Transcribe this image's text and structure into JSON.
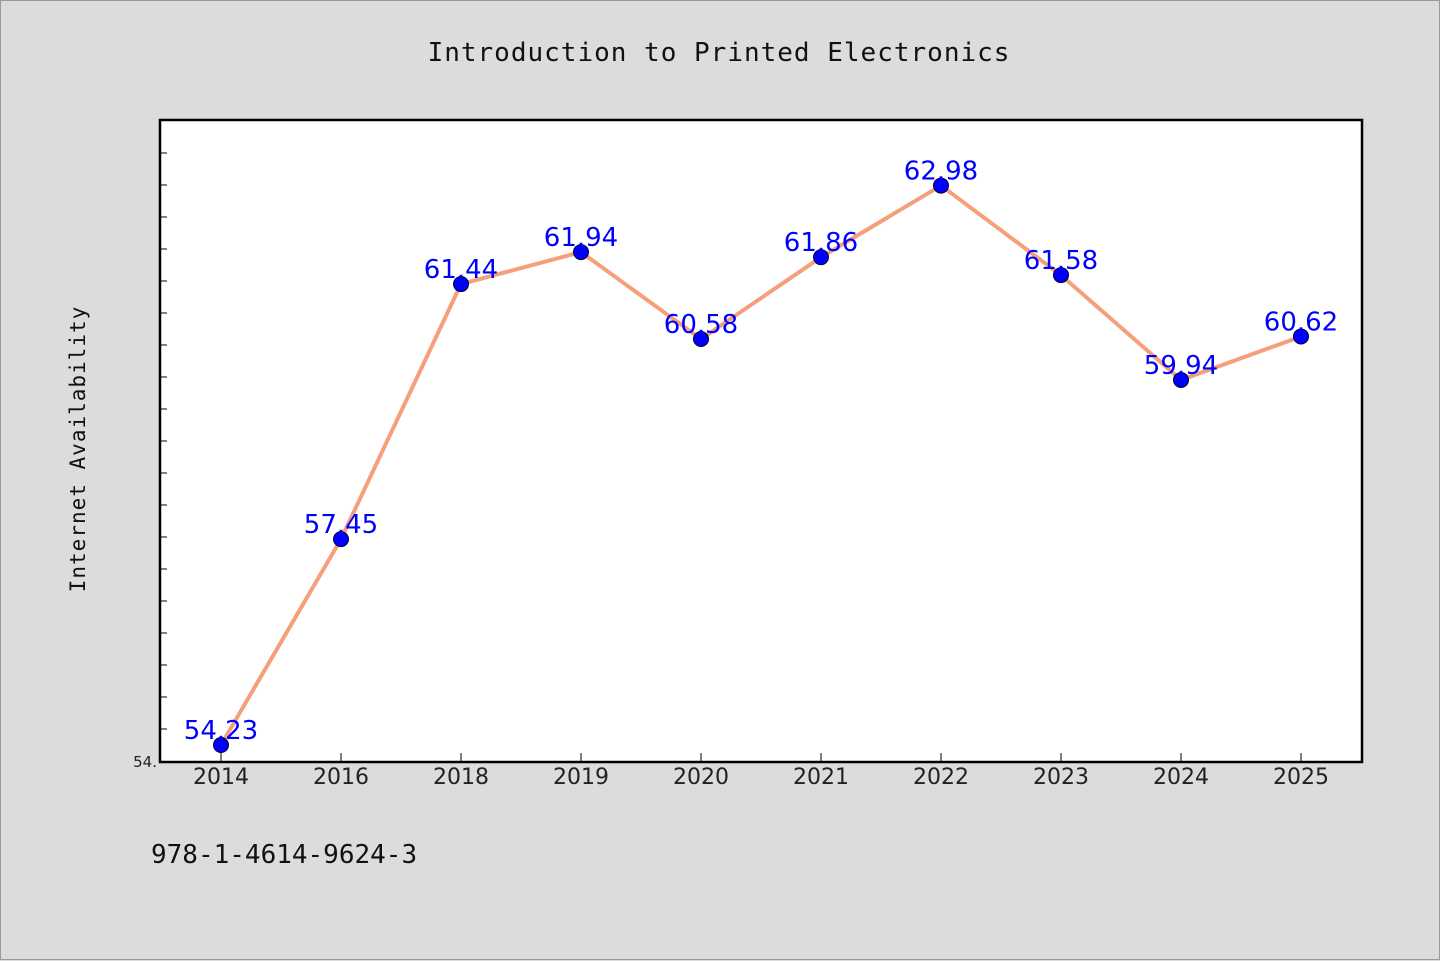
{
  "chart_data": {
    "type": "line",
    "title": "Introduction to Printed Electronics",
    "xlabel": "",
    "ylabel": "Internet Availability",
    "categories": [
      "2014",
      "2016",
      "2018",
      "2019",
      "2020",
      "2021",
      "2022",
      "2023",
      "2024",
      "2025"
    ],
    "series": [
      {
        "values": [
          54.23,
          57.45,
          61.44,
          61.94,
          60.58,
          61.86,
          62.98,
          61.58,
          59.94,
          60.62
        ],
        "data_labels": [
          "54.23",
          "57.45",
          "61.44",
          "61.94",
          "60.58",
          "61.86",
          "62.98",
          "61.58",
          "59.94",
          "60.62"
        ],
        "line_color": "#f5a07a",
        "marker_color": "#0000ff"
      }
    ],
    "ylim": [
      53.98,
      63.99
    ],
    "y_tick_labels": [
      "54."
    ],
    "grid": false,
    "legend": "none",
    "data_label_color": "#0000ff"
  },
  "footer": {
    "isbn": "978-1-4614-9624-3"
  }
}
